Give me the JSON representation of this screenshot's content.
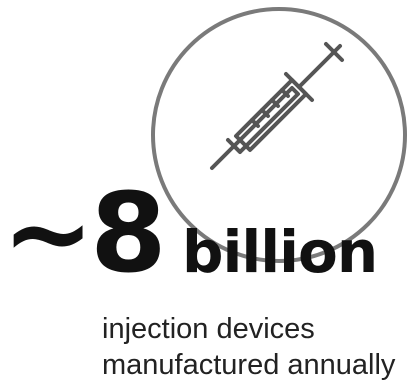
{
  "stat": {
    "number": "~8",
    "unit": "billion",
    "caption_line1": "injection devices",
    "caption_line2": "manufactured annually"
  },
  "icon": {
    "name": "syringe-icon",
    "ring_name": "circle-ring-icon"
  },
  "colors": {
    "text": "#111111",
    "icon_stroke": "#555555",
    "ring": "#7a7a7a"
  }
}
